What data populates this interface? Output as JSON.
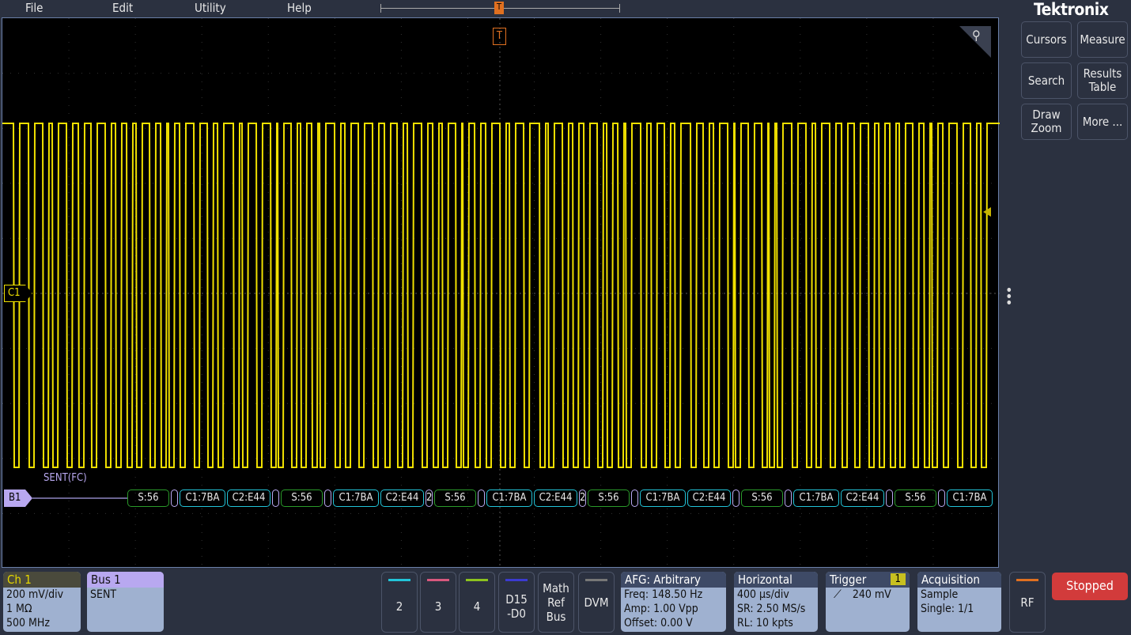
{
  "menu": [
    "File",
    "Edit",
    "Utility",
    "Help"
  ],
  "brand": "Tektronix",
  "side_buttons": [
    "Cursors",
    "Measure",
    "Search",
    "Results Table",
    "Draw Zoom",
    "More ..."
  ],
  "trigger_marker": "T",
  "channel_marker": "C1",
  "bus_marker": "B1",
  "bus_label": "SENT(FC)",
  "bus_packets": [
    {
      "text": "S:56",
      "type": "status"
    },
    {
      "text": "",
      "type": "gap"
    },
    {
      "text": "C1:7BA",
      "type": "data"
    },
    {
      "text": "C2:E44",
      "type": "data"
    },
    {
      "text": "",
      "type": "gap"
    },
    {
      "text": "S:56",
      "type": "status"
    },
    {
      "text": "",
      "type": "gap"
    },
    {
      "text": "C1:7BA",
      "type": "data"
    },
    {
      "text": "C2:E44",
      "type": "data"
    },
    {
      "text": "2",
      "type": "gap"
    },
    {
      "text": "S:56",
      "type": "status"
    },
    {
      "text": "",
      "type": "gap"
    },
    {
      "text": "C1:7BA",
      "type": "data"
    },
    {
      "text": "C2:E44",
      "type": "data"
    },
    {
      "text": "2",
      "type": "gap"
    },
    {
      "text": "S:56",
      "type": "status"
    },
    {
      "text": "",
      "type": "gap"
    },
    {
      "text": "C1:7BA",
      "type": "data"
    },
    {
      "text": "C2:E44",
      "type": "data"
    },
    {
      "text": "",
      "type": "gap"
    },
    {
      "text": "S:56",
      "type": "status"
    },
    {
      "text": "",
      "type": "gap"
    },
    {
      "text": "C1:7BA",
      "type": "data"
    },
    {
      "text": "C2:E44",
      "type": "data"
    },
    {
      "text": "",
      "type": "gap"
    },
    {
      "text": "S:56",
      "type": "status"
    },
    {
      "text": "",
      "type": "gap"
    },
    {
      "text": "C1:7BA",
      "type": "data"
    }
  ],
  "ch1": {
    "title": "Ch 1",
    "lines": [
      "200 mV/div",
      "1 MΩ",
      "500 MHz"
    ]
  },
  "bus1": {
    "title": "Bus 1",
    "lines": [
      "SENT"
    ]
  },
  "channel_buttons": [
    {
      "label": "2",
      "color": "#22c4d8"
    },
    {
      "label": "3",
      "color": "#d8587e"
    },
    {
      "label": "4",
      "color": "#8cc21e"
    },
    {
      "label": "D15\n-D0",
      "color": "#3b3bd0"
    },
    {
      "label": "Math\nRef\nBus",
      "color": ""
    },
    {
      "label": "DVM",
      "color": "#777777"
    }
  ],
  "afg": {
    "title": "AFG: Arbitrary",
    "lines": [
      "Freq: 148.50 Hz",
      "Amp: 1.00 Vpp",
      "Offset: 0.00 V"
    ]
  },
  "horizontal": {
    "title": "Horizontal",
    "lines": [
      "400 µs/div",
      "SR: 2.50 MS/s",
      "RL: 10 kpts"
    ]
  },
  "trigger": {
    "title": "Trigger",
    "source": "1",
    "level": "240 mV"
  },
  "acquisition": {
    "title": "Acquisition",
    "lines": [
      "Sample",
      "Single: 1/1"
    ]
  },
  "rf": {
    "label": "RF",
    "color": "#e07020"
  },
  "run_state": "Stopped",
  "colors": {
    "ch1": "#f0e000",
    "bus": "#b8a8f0",
    "status_packet": "#2a9a2a",
    "data_packet": "#22c4d8",
    "stopped": "#d23b3b"
  }
}
